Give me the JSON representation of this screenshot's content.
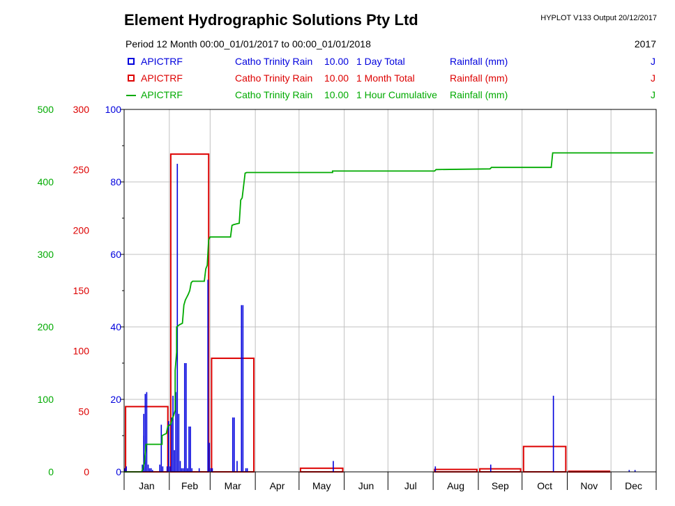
{
  "header": {
    "title": "Element Hydrographic Solutions Pty Ltd",
    "version": "HYPLOT V133  Output 20/12/2017",
    "period": "Period   12 Month  00:00_01/01/2017 to 00:00_01/01/2018",
    "year": "2017"
  },
  "legend": [
    {
      "code": "APICTRF",
      "site": "Catho Trinity Rain",
      "var": "10.00",
      "desc": "1 Day Total",
      "unit": "Rainfall (mm)",
      "flag": "J",
      "color": "#0000dd",
      "symbol": "box"
    },
    {
      "code": "APICTRF",
      "site": "Catho Trinity Rain",
      "var": "10.00",
      "desc": "1 Month Total",
      "unit": "Rainfall (mm)",
      "flag": "J",
      "color": "#dd0000",
      "symbol": "box"
    },
    {
      "code": "APICTRF",
      "site": "Catho Trinity Rain",
      "var": "10.00",
      "desc": "1 Hour Cumulative",
      "unit": "Rainfall (mm)",
      "flag": "J",
      "color": "#00aa00",
      "symbol": "line"
    }
  ],
  "chart_data": {
    "type": "bar",
    "xlabel": "",
    "months": [
      "Jan",
      "Feb",
      "Mar",
      "Apr",
      "May",
      "Jun",
      "Jul",
      "Aug",
      "Sep",
      "Oct",
      "Nov",
      "Dec"
    ],
    "month_start_days": [
      0,
      31,
      59,
      90,
      120,
      151,
      181,
      212,
      243,
      273,
      304,
      334
    ],
    "x_range_days": [
      0,
      365
    ],
    "grid": true,
    "axes": {
      "daily": {
        "ylim": [
          0,
          100
        ],
        "ticks": [
          0,
          20,
          40,
          60,
          80,
          100
        ],
        "color": "#0000dd"
      },
      "monthly": {
        "ylim": [
          0,
          300
        ],
        "ticks": [
          0,
          50,
          100,
          150,
          200,
          250,
          300
        ],
        "color": "#dd0000"
      },
      "cumulative": {
        "ylim": [
          0,
          500
        ],
        "ticks": [
          0,
          100,
          200,
          300,
          400,
          500
        ],
        "color": "#00aa00"
      }
    },
    "daily_total": [
      [
        0,
        1
      ],
      [
        1,
        1.5
      ],
      [
        12,
        2
      ],
      [
        13,
        10
      ],
      [
        13,
        16
      ],
      [
        14,
        21.5
      ],
      [
        15,
        22
      ],
      [
        16,
        2
      ],
      [
        17,
        1
      ],
      [
        18,
        1
      ],
      [
        19,
        0.5
      ],
      [
        24,
        2
      ],
      [
        25,
        13
      ],
      [
        26,
        1.5
      ],
      [
        29,
        1.5
      ],
      [
        30,
        14
      ],
      [
        31,
        1.5
      ],
      [
        32,
        15
      ],
      [
        33,
        21
      ],
      [
        34,
        6
      ],
      [
        35,
        22
      ],
      [
        36,
        85
      ],
      [
        37,
        16
      ],
      [
        38,
        3
      ],
      [
        39,
        1
      ],
      [
        40,
        1
      ],
      [
        41,
        30
      ],
      [
        42,
        30
      ],
      [
        43,
        1
      ],
      [
        44,
        12.5
      ],
      [
        45,
        12.5
      ],
      [
        46,
        1
      ],
      [
        51,
        1
      ],
      [
        57,
        53
      ],
      [
        58,
        8
      ],
      [
        59,
        1
      ],
      [
        60,
        1
      ],
      [
        74,
        15
      ],
      [
        75,
        15
      ],
      [
        77,
        3
      ],
      [
        80,
        46
      ],
      [
        81,
        46
      ],
      [
        83,
        1
      ],
      [
        84,
        1
      ],
      [
        143,
        3
      ],
      [
        213,
        1.5
      ],
      [
        251,
        2
      ],
      [
        294,
        21
      ],
      [
        346,
        0.5
      ],
      [
        350,
        0.5
      ]
    ],
    "monthly_total": [
      {
        "month": "Jan",
        "value": 54
      },
      {
        "month": "Feb",
        "value": 263
      },
      {
        "month": "Mar",
        "value": 94
      },
      {
        "month": "Apr",
        "value": 0
      },
      {
        "month": "May",
        "value": 3
      },
      {
        "month": "Jun",
        "value": 0
      },
      {
        "month": "Jul",
        "value": 0
      },
      {
        "month": "Aug",
        "value": 2
      },
      {
        "month": "Sep",
        "value": 2.5
      },
      {
        "month": "Oct",
        "value": 21
      },
      {
        "month": "Nov",
        "value": 0.5
      },
      {
        "month": "Dec",
        "value": 0
      }
    ],
    "hour_cumulative": [
      [
        0,
        0
      ],
      [
        12,
        0
      ],
      [
        13,
        5
      ],
      [
        14,
        15
      ],
      [
        15,
        38
      ],
      [
        26,
        38
      ],
      [
        26,
        50
      ],
      [
        29,
        53
      ],
      [
        30,
        63
      ],
      [
        31,
        64
      ],
      [
        32,
        66
      ],
      [
        33,
        73
      ],
      [
        34,
        78
      ],
      [
        35,
        85
      ],
      [
        35,
        140
      ],
      [
        36,
        165
      ],
      [
        36,
        200
      ],
      [
        38,
        203
      ],
      [
        40,
        205
      ],
      [
        41,
        230
      ],
      [
        42,
        237
      ],
      [
        43,
        241
      ],
      [
        44,
        245
      ],
      [
        45,
        250
      ],
      [
        46,
        261
      ],
      [
        47,
        263
      ],
      [
        55,
        263
      ],
      [
        56,
        280
      ],
      [
        57,
        285
      ],
      [
        58,
        320
      ],
      [
        59,
        324
      ],
      [
        73,
        324
      ],
      [
        74,
        340
      ],
      [
        75,
        341
      ],
      [
        77,
        342
      ],
      [
        79,
        343
      ],
      [
        80,
        375
      ],
      [
        81,
        378
      ],
      [
        83,
        412
      ],
      [
        84,
        413
      ],
      [
        143,
        413
      ],
      [
        143,
        415
      ],
      [
        213,
        415
      ],
      [
        214,
        417
      ],
      [
        251,
        418
      ],
      [
        252,
        420
      ],
      [
        293,
        420
      ],
      [
        294,
        440
      ],
      [
        346,
        440
      ],
      [
        363,
        440
      ]
    ]
  }
}
